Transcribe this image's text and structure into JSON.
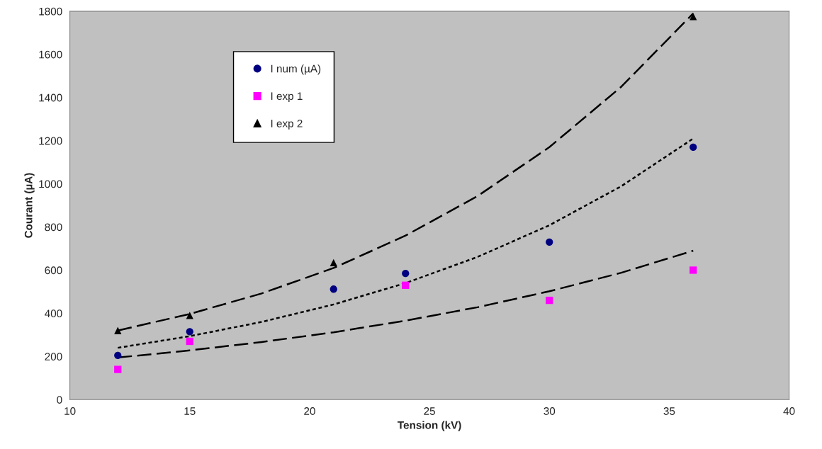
{
  "chart_data": {
    "type": "scatter",
    "xlabel": "Tension (kV)",
    "ylabel": "Courant (µA)",
    "xlim": [
      10,
      40
    ],
    "xticks": [
      10,
      15,
      20,
      25,
      30,
      35,
      40
    ],
    "ylim": [
      0,
      1800
    ],
    "yticks": [
      0,
      200,
      400,
      600,
      800,
      1000,
      1200,
      1400,
      1600,
      1800
    ],
    "grid": false,
    "legend": "top left",
    "series": [
      {
        "name": "I num (µA)",
        "marker": "circle",
        "color": "#000080",
        "x": [
          12,
          15,
          21,
          24,
          30,
          36
        ],
        "values": [
          205,
          315,
          512,
          585,
          730,
          1170
        ]
      },
      {
        "name": "I exp 1",
        "marker": "square",
        "color": "#ff00ff",
        "x": [
          12,
          15,
          24,
          30,
          36
        ],
        "values": [
          140,
          270,
          530,
          460,
          600
        ]
      },
      {
        "name": "I exp 2",
        "marker": "triangle",
        "color": "#000000",
        "x": [
          12,
          15,
          21,
          36
        ],
        "values": [
          320,
          390,
          635,
          1775
        ]
      },
      {
        "type": "line",
        "line_style": "dashed",
        "color": "#000000",
        "x": [
          12,
          15,
          18,
          21,
          24,
          27,
          30,
          33,
          36
        ],
        "values": [
          320,
          397,
          492,
          610,
          760,
          943,
          1170,
          1450,
          1790
        ]
      },
      {
        "type": "line",
        "line_style": "dotted",
        "color": "#000000",
        "x": [
          12,
          15,
          18,
          21,
          24,
          27,
          30,
          33,
          36
        ],
        "values": [
          240,
          294,
          360,
          441,
          540,
          661,
          808,
          989,
          1210
        ]
      },
      {
        "type": "line",
        "line_style": "dashed",
        "color": "#000000",
        "x": [
          12,
          15,
          18,
          21,
          24,
          27,
          30,
          33,
          36
        ],
        "values": [
          195,
          228,
          267,
          312,
          366,
          428,
          502,
          588,
          690
        ]
      }
    ]
  }
}
